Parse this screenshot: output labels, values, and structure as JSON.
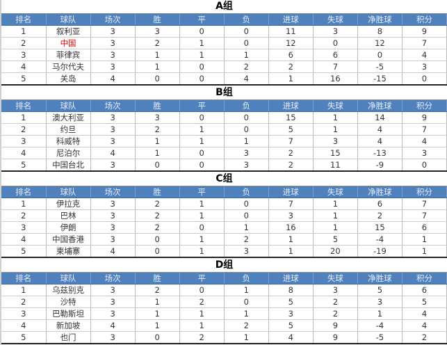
{
  "headers": [
    "排名",
    "球队",
    "场次",
    "胜",
    "平",
    "负",
    "进球",
    "失球",
    "净胜球",
    "积分"
  ],
  "highlight_color": "#e00000",
  "header_color": "#4f81bd",
  "groups": [
    {
      "title": "A组",
      "rows": [
        [
          "1",
          "叙利亚",
          "3",
          "3",
          "0",
          "0",
          "11",
          "3",
          "8",
          "9"
        ],
        [
          "2",
          "中国",
          "3",
          "2",
          "1",
          "0",
          "12",
          "0",
          "12",
          "7"
        ],
        [
          "3",
          "菲律宾",
          "3",
          "1",
          "1",
          "1",
          "6",
          "6",
          "0",
          "4"
        ],
        [
          "4",
          "马尔代夫",
          "3",
          "1",
          "0",
          "2",
          "2",
          "7",
          "-5",
          "3"
        ],
        [
          "5",
          "关岛",
          "4",
          "0",
          "0",
          "4",
          "1",
          "16",
          "-15",
          "0"
        ]
      ]
    },
    {
      "title": "B组",
      "rows": [
        [
          "1",
          "澳大利亚",
          "3",
          "3",
          "0",
          "0",
          "15",
          "1",
          "14",
          "9"
        ],
        [
          "2",
          "约旦",
          "3",
          "2",
          "1",
          "0",
          "5",
          "1",
          "4",
          "7"
        ],
        [
          "3",
          "科威特",
          "3",
          "1",
          "1",
          "1",
          "7",
          "3",
          "4",
          "4"
        ],
        [
          "4",
          "尼泊尔",
          "4",
          "1",
          "0",
          "3",
          "2",
          "15",
          "-13",
          "3"
        ],
        [
          "5",
          "中国台北",
          "3",
          "0",
          "0",
          "3",
          "2",
          "11",
          "-9",
          "0"
        ]
      ]
    },
    {
      "title": "C组",
      "rows": [
        [
          "1",
          "伊拉克",
          "3",
          "2",
          "1",
          "0",
          "7",
          "1",
          "6",
          "7"
        ],
        [
          "2",
          "巴林",
          "3",
          "2",
          "1",
          "0",
          "3",
          "1",
          "2",
          "7"
        ],
        [
          "3",
          "伊朗",
          "3",
          "2",
          "0",
          "1",
          "16",
          "1",
          "15",
          "6"
        ],
        [
          "4",
          "中国香港",
          "3",
          "0",
          "1",
          "2",
          "1",
          "5",
          "-4",
          "1"
        ],
        [
          "5",
          "柬埔寨",
          "4",
          "0",
          "1",
          "3",
          "1",
          "20",
          "-19",
          "1"
        ]
      ]
    },
    {
      "title": "D组",
      "rows": [
        [
          "1",
          "乌兹别克",
          "3",
          "2",
          "0",
          "1",
          "8",
          "3",
          "5",
          "6"
        ],
        [
          "2",
          "沙特",
          "3",
          "1",
          "2",
          "0",
          "5",
          "2",
          "3",
          "5"
        ],
        [
          "3",
          "巴勒斯坦",
          "3",
          "1",
          "1",
          "1",
          "3",
          "2",
          "1",
          "4"
        ],
        [
          "4",
          "新加坡",
          "4",
          "1",
          "1",
          "2",
          "5",
          "9",
          "-4",
          "4"
        ],
        [
          "5",
          "也门",
          "3",
          "0",
          "2",
          "1",
          "4",
          "9",
          "-5",
          "2"
        ]
      ]
    }
  ]
}
